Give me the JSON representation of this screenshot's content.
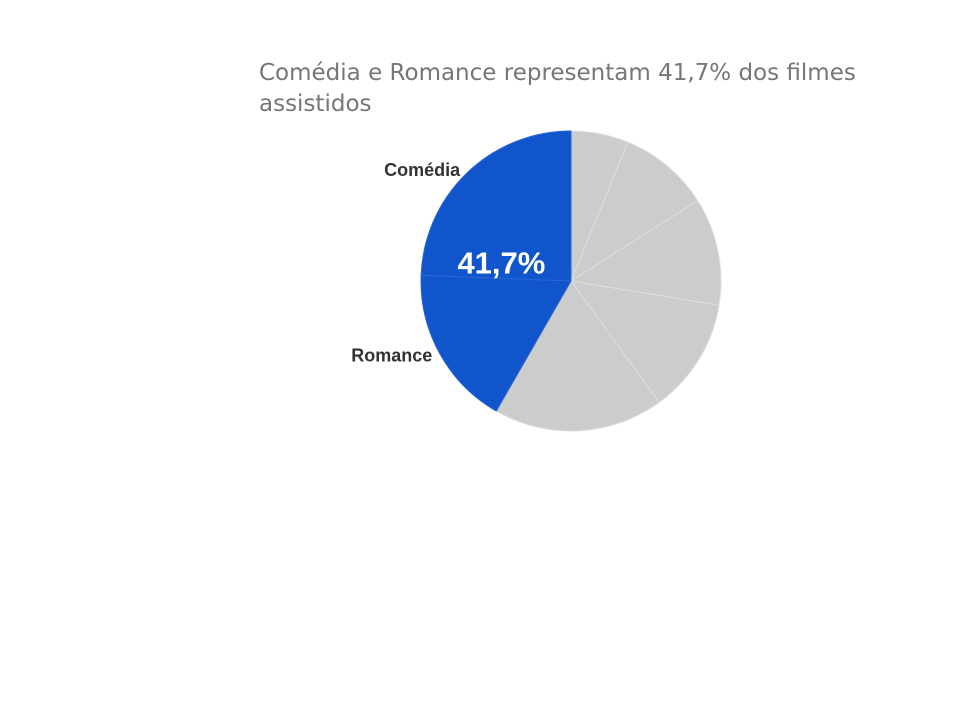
{
  "chart_data": {
    "type": "pie",
    "title": "Comédia e Romance representam 41,7% dos filmes assistidos",
    "highlight_label": "41,7%",
    "slices": [
      {
        "label": "",
        "value": 6.2,
        "color": "#cccccc"
      },
      {
        "label": "",
        "value": 9.8,
        "color": "#cccccc"
      },
      {
        "label": "",
        "value": 11.6,
        "color": "#cccccc"
      },
      {
        "label": "",
        "value": 12.4,
        "color": "#cccccc"
      },
      {
        "label": "",
        "value": 18.3,
        "color": "#cccccc"
      },
      {
        "label": "Romance",
        "value": 17.3,
        "color": "#1155cc"
      },
      {
        "label": "Comédia",
        "value": 24.4,
        "color": "#1155cc"
      }
    ],
    "start_angle_deg": 0,
    "direction": "clockwise"
  }
}
